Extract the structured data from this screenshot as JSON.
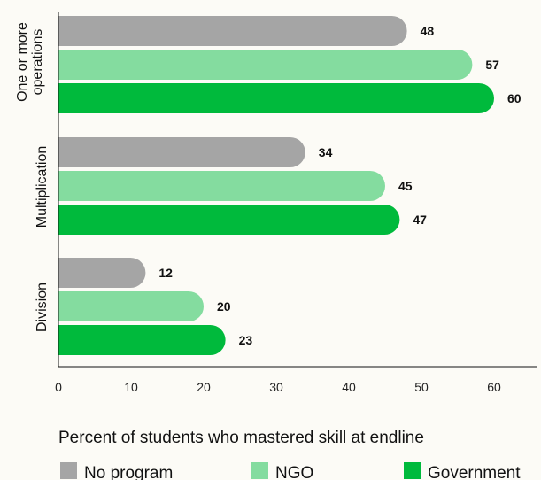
{
  "chart_data": {
    "type": "bar",
    "orientation": "horizontal",
    "categories": [
      [
        "One or more",
        "operations"
      ],
      [
        "Multiplication"
      ],
      [
        "Division"
      ]
    ],
    "series": [
      {
        "name": "No program",
        "color": "#a5a5a5",
        "values": [
          48,
          34,
          12
        ]
      },
      {
        "name": "NGO",
        "color": "#84dc9f",
        "values": [
          57,
          45,
          20
        ]
      },
      {
        "name": "Government",
        "color": "#00ba3c",
        "values": [
          60,
          47,
          23
        ]
      }
    ],
    "xlabel": "Percent of students who mastered skill at endline",
    "xlim": [
      0,
      66
    ],
    "xticks": [
      0,
      10,
      20,
      30,
      40,
      50,
      60
    ],
    "grid": false,
    "legend_position": "bottom"
  }
}
